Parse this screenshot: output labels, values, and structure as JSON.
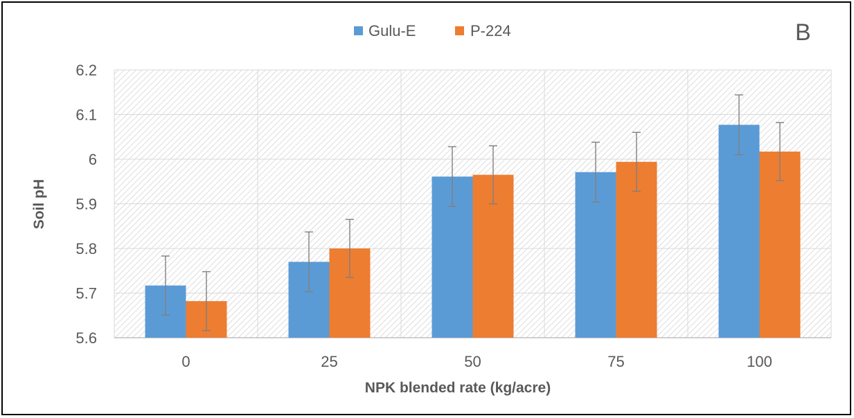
{
  "chart_data": {
    "type": "bar",
    "panel_label": "B",
    "title": "",
    "xlabel": "NPK blended rate (kg/acre)",
    "ylabel": "Soil pH",
    "categories": [
      "0",
      "25",
      "50",
      "75",
      "100"
    ],
    "ylim": [
      5.6,
      6.2
    ],
    "yticks": [
      "5.6",
      "5.7",
      "5.8",
      "5.9",
      "6",
      "6.1",
      "6.2"
    ],
    "grid": true,
    "legend_position": "top-center",
    "series": [
      {
        "name": "Gulu-E",
        "color": "#5B9BD5",
        "values": [
          5.717,
          5.77,
          5.961,
          5.971,
          6.077
        ],
        "error": [
          0.066,
          0.067,
          0.067,
          0.067,
          0.067
        ]
      },
      {
        "name": "P-224",
        "color": "#ED7D31",
        "values": [
          5.682,
          5.8,
          5.965,
          5.994,
          6.017
        ],
        "error": [
          0.066,
          0.065,
          0.065,
          0.066,
          0.065
        ]
      }
    ]
  }
}
